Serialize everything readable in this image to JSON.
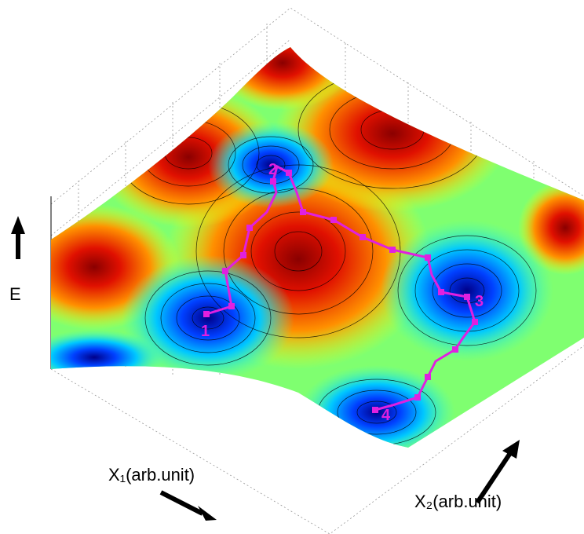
{
  "axes": {
    "x1_label": "X₁(arb.unit)",
    "x2_label": "X₂(arb.unit)",
    "e_label": "E"
  },
  "minima": [
    {
      "label": "1"
    },
    {
      "label": "2"
    },
    {
      "label": "3"
    },
    {
      "label": "4"
    }
  ]
}
